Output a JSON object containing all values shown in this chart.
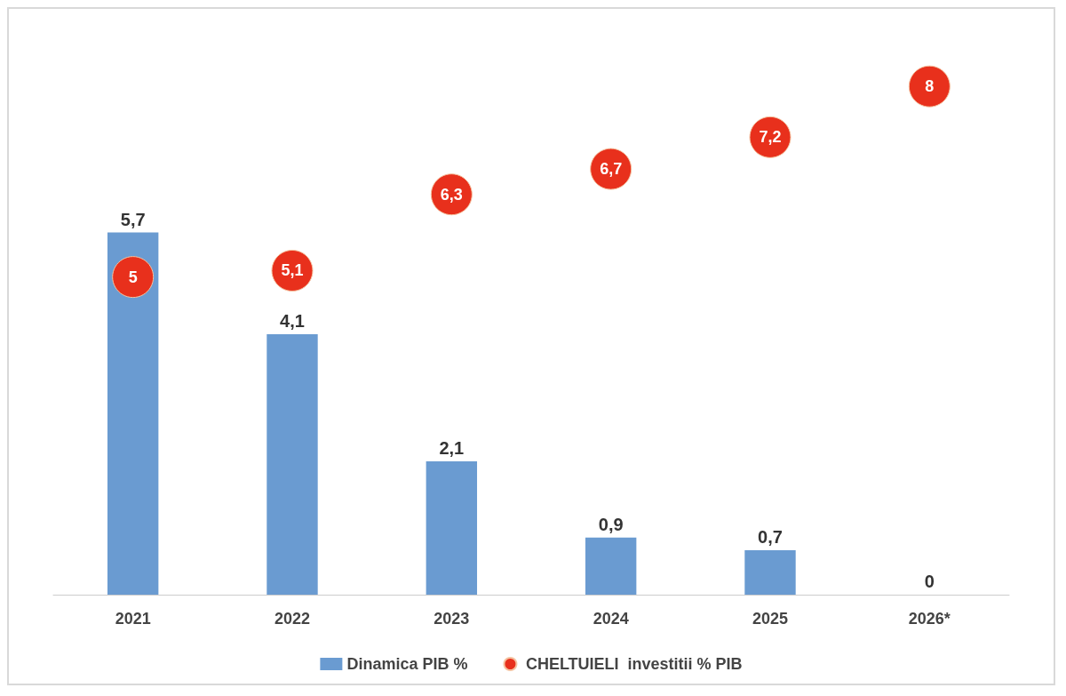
{
  "chart_data": {
    "type": "bar",
    "categories": [
      "2021",
      "2022",
      "2023",
      "2024",
      "2025",
      "2026*"
    ],
    "series": [
      {
        "name": "Dinamica PIB %",
        "color": "#6a9bd1",
        "values": [
          5.7,
          4.1,
          2.1,
          0.9,
          0.7,
          0
        ],
        "value_labels": [
          "5,7",
          "4,1",
          "2,1",
          "0,9",
          "0,7",
          "0"
        ]
      },
      {
        "name": "CHELTUIELI  investitii % PIB",
        "type": "scatter",
        "color": "#e8301c",
        "values": [
          5,
          5.1,
          6.3,
          6.7,
          7.2,
          8
        ],
        "value_labels": [
          "5",
          "5,1",
          "6,3",
          "6,7",
          "7,2",
          "8"
        ]
      }
    ],
    "legend": "bottom",
    "marker": "circle"
  }
}
